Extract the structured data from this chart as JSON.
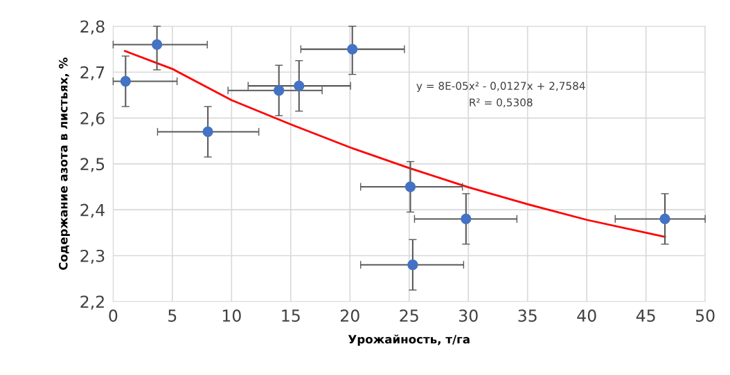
{
  "chart_data": {
    "type": "scatter",
    "xlabel": "Урожайность, т/га",
    "ylabel": "Содержание азота в листьях, %",
    "xlim": [
      0,
      50
    ],
    "xticks": [
      0,
      5,
      10,
      15,
      20,
      25,
      30,
      35,
      40,
      45,
      50
    ],
    "ylim": [
      2.2,
      2.8
    ],
    "yticks": [
      {
        "value": 2.2,
        "label": "2,2"
      },
      {
        "value": 2.3,
        "label": "2,3"
      },
      {
        "value": 2.4,
        "label": "2,4"
      },
      {
        "value": 2.5,
        "label": "2,5"
      },
      {
        "value": 2.6,
        "label": "2,6"
      },
      {
        "value": 2.7,
        "label": "2,7"
      },
      {
        "value": 2.8,
        "label": "2,8"
      }
    ],
    "grid": true,
    "series": [
      {
        "marker": "circle",
        "color": "#4472c4",
        "x": [
          1.05,
          3.7,
          8.0,
          14.0,
          15.7,
          20.2,
          25.1,
          25.3,
          29.8,
          46.6
        ],
        "values": [
          2.68,
          2.76,
          2.57,
          2.66,
          2.67,
          2.75,
          2.45,
          2.28,
          2.38,
          2.38
        ],
        "errors": [
          [
            2.625,
            2.735
          ],
          [
            2.705,
            2.8
          ],
          [
            2.515,
            2.625
          ],
          [
            2.605,
            2.715
          ],
          [
            2.615,
            2.725
          ],
          [
            2.695,
            2.8
          ],
          [
            2.395,
            2.505
          ],
          [
            2.225,
            2.335
          ],
          [
            2.325,
            2.435
          ],
          [
            2.325,
            2.435
          ]
        ],
        "xerrors": [
          [
            0,
            5.4
          ],
          [
            0,
            7.95
          ],
          [
            3.75,
            12.3
          ],
          [
            9.7,
            17.65
          ],
          [
            11.4,
            20.05
          ],
          [
            15.85,
            24.6
          ],
          [
            20.9,
            29.5
          ],
          [
            20.9,
            29.6
          ],
          [
            25.45,
            34.1
          ],
          [
            42.4,
            50
          ]
        ]
      },
      {
        "type": "line",
        "color": "#ff0000",
        "x": [
          1,
          5,
          10,
          15,
          20,
          25,
          30,
          35,
          40,
          46.6
        ],
        "values": [
          2.746,
          2.707,
          2.639,
          2.586,
          2.536,
          2.491,
          2.449,
          2.412,
          2.378,
          2.341
        ]
      }
    ],
    "annotations": [
      "y = 8E-05x² - 0,0127x + 2,7584",
      "R² = 0,5308"
    ]
  }
}
